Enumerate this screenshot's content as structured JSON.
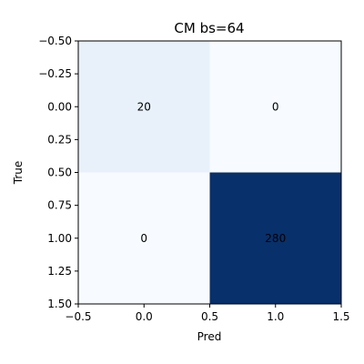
{
  "chart_data": {
    "type": "heatmap",
    "title": "CM bs=64",
    "xlabel": "Pred",
    "ylabel": "True",
    "xlim": [
      -0.5,
      1.5
    ],
    "ylim": [
      1.5,
      -0.5
    ],
    "x_ticks": [
      -0.5,
      0.0,
      0.5,
      1.0,
      1.5
    ],
    "x_tick_labels": [
      "−0.5",
      "0.0",
      "0.5",
      "1.0",
      "1.5"
    ],
    "y_ticks": [
      -0.5,
      -0.25,
      0.0,
      0.25,
      0.5,
      0.75,
      1.0,
      1.25,
      1.5
    ],
    "y_tick_labels": [
      "−0.50",
      "−0.25",
      "0.00",
      "0.25",
      "0.50",
      "0.75",
      "1.00",
      "1.25",
      "1.50"
    ],
    "matrix": [
      [
        20,
        0
      ],
      [
        0,
        280
      ]
    ],
    "colormap": "Blues",
    "grid": false,
    "colors": {
      "lightest": "#f7fbff",
      "light": "#e8f1fa",
      "darkest": "#08306b",
      "axis": "#000000"
    }
  }
}
